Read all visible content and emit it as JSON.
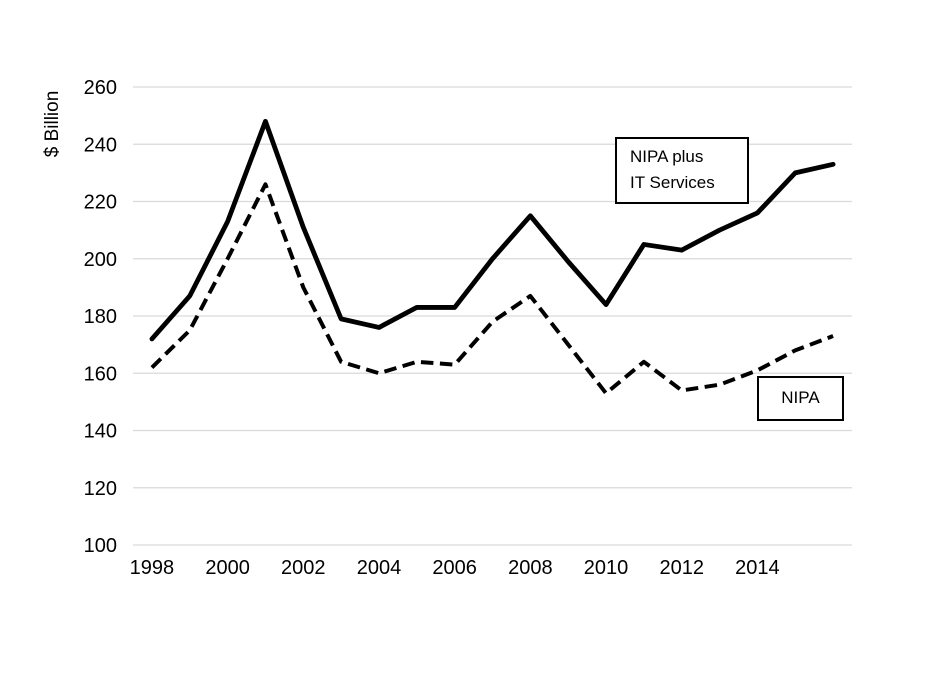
{
  "chart_data": {
    "type": "line",
    "title": "",
    "xlabel": "",
    "ylabel": "$ Billion",
    "ylim": [
      100,
      260
    ],
    "yticks": [
      100,
      120,
      140,
      160,
      180,
      200,
      220,
      240,
      260
    ],
    "x": [
      1998,
      1999,
      2000,
      2001,
      2002,
      2003,
      2004,
      2005,
      2006,
      2007,
      2008,
      2009,
      2010,
      2011,
      2012,
      2013,
      2014,
      2015,
      2016
    ],
    "xticks": [
      1998,
      2000,
      2002,
      2004,
      2006,
      2008,
      2010,
      2012,
      2014
    ],
    "grid": "horizontal",
    "legend_position": "inline-label-boxes",
    "series": [
      {
        "name": "NIPA plus IT Services",
        "line_style": "solid",
        "color": "#000000",
        "values": [
          172,
          187,
          213,
          248,
          211,
          179,
          176,
          183,
          183,
          200,
          215,
          199,
          184,
          205,
          203,
          210,
          216,
          230,
          233
        ]
      },
      {
        "name": "NIPA",
        "line_style": "dashed",
        "color": "#000000",
        "values": [
          162,
          175,
          200,
          226,
          190,
          164,
          160,
          164,
          163,
          178,
          187,
          170,
          153,
          164,
          154,
          156,
          161,
          168,
          173
        ]
      }
    ]
  },
  "annotations": {
    "nipa_plus_it": {
      "line1": "NIPA plus",
      "line2": "IT Services"
    },
    "nipa": {
      "label": "NIPA"
    }
  },
  "colors": {
    "line": "#000000",
    "gridline": "#d9d9d9",
    "background": "#ffffff",
    "text": "#000000"
  }
}
